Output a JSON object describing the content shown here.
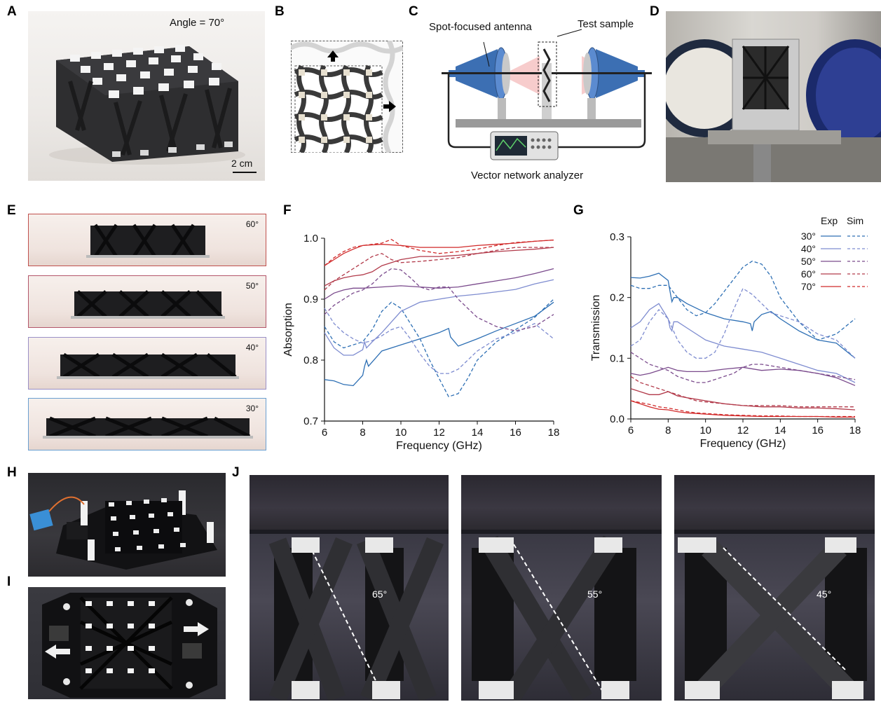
{
  "panel_labels": {
    "A": "A",
    "B": "B",
    "C": "C",
    "D": "D",
    "E": "E",
    "F": "F",
    "G": "G",
    "H": "H",
    "I": "I",
    "J": "J"
  },
  "panelA": {
    "angle_text": "Angle = 70°",
    "scale_text": "2 cm"
  },
  "panelC": {
    "antenna_label": "Spot-focused antenna",
    "sample_label": "Test sample",
    "analyzer_label": "Vector network analyzer"
  },
  "panelE": {
    "angles": [
      "60°",
      "50°",
      "40°",
      "30°"
    ],
    "border_colors": [
      "#c0504d",
      "#b3566a",
      "#9a8fc6",
      "#6a9fd1"
    ]
  },
  "panelJ": {
    "angles": [
      "65°",
      "55°",
      "45°"
    ]
  },
  "colors": {
    "30": "#2d6fb4",
    "40": "#7e8cd0",
    "50": "#7a4a8c",
    "60": "#b23a4a",
    "70": "#d12a2a"
  },
  "chart_data": [
    {
      "type": "line",
      "panel": "F",
      "xlabel": "Frequency (GHz)",
      "ylabel": "Absorption",
      "xlim": [
        6,
        18
      ],
      "ylim": [
        0.7,
        1.0
      ],
      "xticks": [
        "6",
        "8",
        "10",
        "12",
        "14",
        "16",
        "18"
      ],
      "yticks": [
        "0.7",
        "0.8",
        "0.9",
        "1.0"
      ],
      "series": [
        {
          "key": "30",
          "kind": "exp",
          "x": [
            6,
            6.5,
            7,
            7.5,
            8,
            8.1,
            8.2,
            8.3,
            9,
            10,
            11,
            12,
            12.5,
            12.6,
            13,
            14,
            15,
            16,
            17,
            18
          ],
          "y": [
            0.768,
            0.766,
            0.76,
            0.758,
            0.775,
            0.79,
            0.8,
            0.79,
            0.815,
            0.825,
            0.835,
            0.845,
            0.852,
            0.838,
            0.823,
            0.835,
            0.848,
            0.86,
            0.872,
            0.895
          ]
        },
        {
          "key": "30",
          "kind": "sim",
          "x": [
            6,
            6.5,
            7,
            7.5,
            8,
            8.5,
            9,
            9.5,
            10,
            10.5,
            11,
            11.5,
            12,
            12.5,
            13,
            13.5,
            14,
            15,
            16,
            17,
            18
          ],
          "y": [
            0.855,
            0.83,
            0.82,
            0.825,
            0.83,
            0.85,
            0.88,
            0.895,
            0.885,
            0.86,
            0.835,
            0.8,
            0.77,
            0.74,
            0.745,
            0.77,
            0.8,
            0.83,
            0.85,
            0.87,
            0.9
          ]
        },
        {
          "key": "40",
          "kind": "exp",
          "x": [
            6,
            6.5,
            7,
            7.5,
            8,
            8.1,
            8.2,
            8.5,
            9,
            10,
            11,
            12,
            13,
            14,
            15,
            16,
            17,
            18
          ],
          "y": [
            0.845,
            0.82,
            0.808,
            0.808,
            0.817,
            0.83,
            0.82,
            0.83,
            0.845,
            0.88,
            0.895,
            0.9,
            0.905,
            0.908,
            0.912,
            0.916,
            0.925,
            0.932
          ]
        },
        {
          "key": "40",
          "kind": "sim",
          "x": [
            6,
            6.5,
            7,
            7.5,
            8,
            8.5,
            9,
            9.5,
            10,
            10.5,
            11,
            11.5,
            12,
            12.5,
            13,
            13.5,
            14,
            15,
            16,
            17,
            18
          ],
          "y": [
            0.885,
            0.86,
            0.845,
            0.835,
            0.828,
            0.832,
            0.84,
            0.85,
            0.855,
            0.835,
            0.81,
            0.79,
            0.778,
            0.778,
            0.785,
            0.8,
            0.815,
            0.835,
            0.845,
            0.86,
            0.835
          ]
        },
        {
          "key": "50",
          "kind": "exp",
          "x": [
            6,
            6.5,
            7,
            7.5,
            8,
            9,
            10,
            11,
            12,
            13,
            14,
            15,
            16,
            17,
            18
          ],
          "y": [
            0.9,
            0.91,
            0.915,
            0.918,
            0.918,
            0.92,
            0.922,
            0.92,
            0.918,
            0.92,
            0.925,
            0.93,
            0.935,
            0.942,
            0.95
          ]
        },
        {
          "key": "50",
          "kind": "sim",
          "x": [
            6,
            6.5,
            7,
            7.5,
            8,
            8.5,
            9,
            9.5,
            10,
            10.5,
            11,
            11.5,
            12,
            12.5,
            13,
            14,
            15,
            16,
            17,
            18
          ],
          "y": [
            0.875,
            0.89,
            0.9,
            0.91,
            0.915,
            0.925,
            0.94,
            0.95,
            0.948,
            0.935,
            0.92,
            0.915,
            0.92,
            0.92,
            0.9,
            0.87,
            0.855,
            0.848,
            0.855,
            0.875
          ]
        },
        {
          "key": "60",
          "kind": "exp",
          "x": [
            6,
            6.5,
            7,
            7.5,
            8,
            8.5,
            9,
            10,
            11,
            12,
            13,
            14,
            15,
            16,
            17,
            18
          ],
          "y": [
            0.922,
            0.93,
            0.935,
            0.938,
            0.94,
            0.945,
            0.955,
            0.965,
            0.97,
            0.97,
            0.972,
            0.975,
            0.978,
            0.98,
            0.982,
            0.985
          ]
        },
        {
          "key": "60",
          "kind": "sim",
          "x": [
            6,
            6.5,
            7,
            7.5,
            8,
            8.5,
            9,
            9.5,
            10,
            11,
            12,
            13,
            14,
            15,
            16,
            17,
            18
          ],
          "y": [
            0.915,
            0.93,
            0.94,
            0.95,
            0.96,
            0.97,
            0.975,
            0.965,
            0.96,
            0.962,
            0.965,
            0.968,
            0.975,
            0.98,
            0.985,
            0.985,
            0.985
          ]
        },
        {
          "key": "70",
          "kind": "exp",
          "x": [
            6,
            6.5,
            7,
            7.5,
            8,
            9,
            10,
            11,
            12,
            13,
            14,
            15,
            16,
            17,
            18
          ],
          "y": [
            0.955,
            0.965,
            0.975,
            0.982,
            0.988,
            0.99,
            0.988,
            0.985,
            0.985,
            0.985,
            0.988,
            0.99,
            0.992,
            0.995,
            0.997
          ]
        },
        {
          "key": "70",
          "kind": "sim",
          "x": [
            6,
            6.5,
            7,
            7.5,
            8,
            8.5,
            9,
            9.5,
            10,
            11,
            12,
            13,
            14,
            15,
            16,
            17,
            18
          ],
          "y": [
            0.955,
            0.968,
            0.978,
            0.985,
            0.988,
            0.99,
            0.992,
            0.998,
            0.988,
            0.98,
            0.975,
            0.978,
            0.982,
            0.988,
            0.993,
            0.995,
            0.997
          ]
        }
      ]
    },
    {
      "type": "line",
      "panel": "G",
      "xlabel": "Frequency (GHz)",
      "ylabel": "Transmission",
      "xlim": [
        6,
        18
      ],
      "ylim": [
        0.0,
        0.3
      ],
      "xticks": [
        "6",
        "8",
        "10",
        "12",
        "14",
        "16",
        "18"
      ],
      "yticks": [
        "0.0",
        "0.1",
        "0.2",
        "0.3"
      ],
      "legend": {
        "headers": [
          "Exp",
          "Sim"
        ],
        "entries": [
          "30°",
          "40°",
          "50°",
          "60°",
          "70°"
        ]
      },
      "series": [
        {
          "key": "30",
          "kind": "exp",
          "x": [
            6,
            6.5,
            7,
            7.5,
            8,
            8.1,
            8.2,
            8.3,
            8.5,
            9,
            10,
            11,
            12,
            12.4,
            12.5,
            12.6,
            13,
            13.5,
            14,
            15,
            16,
            17,
            18
          ],
          "y": [
            0.233,
            0.232,
            0.235,
            0.24,
            0.228,
            0.21,
            0.193,
            0.2,
            0.2,
            0.19,
            0.175,
            0.165,
            0.16,
            0.157,
            0.145,
            0.16,
            0.172,
            0.177,
            0.165,
            0.145,
            0.13,
            0.125,
            0.1
          ]
        },
        {
          "key": "30",
          "kind": "sim",
          "x": [
            6,
            6.5,
            7,
            7.5,
            8,
            8.5,
            9,
            9.5,
            10,
            10.5,
            11,
            11.5,
            12,
            12.5,
            13,
            13.5,
            14,
            15,
            16,
            17,
            18
          ],
          "y": [
            0.22,
            0.215,
            0.215,
            0.22,
            0.22,
            0.2,
            0.18,
            0.17,
            0.175,
            0.19,
            0.21,
            0.23,
            0.25,
            0.26,
            0.255,
            0.235,
            0.2,
            0.16,
            0.13,
            0.14,
            0.165
          ]
        },
        {
          "key": "40",
          "kind": "exp",
          "x": [
            6,
            6.5,
            7,
            7.5,
            8,
            8.1,
            8.2,
            8.3,
            8.5,
            9,
            10,
            11,
            12,
            13,
            14,
            15,
            16,
            17,
            18
          ],
          "y": [
            0.15,
            0.16,
            0.18,
            0.19,
            0.165,
            0.15,
            0.145,
            0.16,
            0.16,
            0.15,
            0.13,
            0.12,
            0.115,
            0.11,
            0.1,
            0.09,
            0.08,
            0.075,
            0.06
          ]
        },
        {
          "key": "40",
          "kind": "sim",
          "x": [
            6,
            6.5,
            7,
            7.5,
            8,
            8.5,
            9,
            9.5,
            10,
            10.5,
            11,
            11.5,
            12,
            12.5,
            13,
            13.5,
            14,
            15,
            16,
            17,
            18
          ],
          "y": [
            0.12,
            0.13,
            0.16,
            0.18,
            0.165,
            0.13,
            0.11,
            0.1,
            0.1,
            0.11,
            0.14,
            0.18,
            0.215,
            0.205,
            0.19,
            0.175,
            0.17,
            0.16,
            0.14,
            0.13,
            0.1
          ]
        },
        {
          "key": "50",
          "kind": "exp",
          "x": [
            6,
            6.5,
            7,
            7.5,
            8,
            8.5,
            9,
            10,
            11,
            12,
            13,
            14,
            15,
            16,
            17,
            18
          ],
          "y": [
            0.075,
            0.072,
            0.075,
            0.08,
            0.085,
            0.08,
            0.078,
            0.078,
            0.082,
            0.085,
            0.08,
            0.082,
            0.08,
            0.075,
            0.068,
            0.055
          ]
        },
        {
          "key": "50",
          "kind": "sim",
          "x": [
            6,
            6.5,
            7,
            7.5,
            8,
            8.5,
            9,
            9.5,
            10,
            10.5,
            11,
            11.5,
            12,
            12.5,
            13,
            14,
            15,
            16,
            17,
            18
          ],
          "y": [
            0.11,
            0.1,
            0.09,
            0.085,
            0.08,
            0.07,
            0.065,
            0.06,
            0.06,
            0.065,
            0.07,
            0.075,
            0.085,
            0.09,
            0.09,
            0.085,
            0.08,
            0.075,
            0.07,
            0.065
          ]
        },
        {
          "key": "60",
          "kind": "exp",
          "x": [
            6,
            6.5,
            7,
            7.5,
            8,
            8.5,
            9,
            10,
            11,
            12,
            13,
            14,
            15,
            16,
            17,
            18
          ],
          "y": [
            0.05,
            0.045,
            0.04,
            0.04,
            0.045,
            0.038,
            0.035,
            0.03,
            0.025,
            0.022,
            0.02,
            0.02,
            0.018,
            0.018,
            0.017,
            0.015
          ]
        },
        {
          "key": "60",
          "kind": "sim",
          "x": [
            6,
            6.5,
            7,
            7.5,
            8,
            8.5,
            9,
            9.5,
            10,
            11,
            12,
            13,
            14,
            15,
            16,
            17,
            18
          ],
          "y": [
            0.07,
            0.06,
            0.055,
            0.05,
            0.045,
            0.04,
            0.035,
            0.03,
            0.028,
            0.025,
            0.022,
            0.022,
            0.022,
            0.02,
            0.02,
            0.02,
            0.02
          ]
        },
        {
          "key": "70",
          "kind": "exp",
          "x": [
            6,
            6.5,
            7,
            7.5,
            8,
            8.5,
            9,
            10,
            11,
            12,
            13,
            14,
            15,
            16,
            17,
            18
          ],
          "y": [
            0.03,
            0.025,
            0.02,
            0.016,
            0.015,
            0.012,
            0.01,
            0.008,
            0.006,
            0.005,
            0.004,
            0.004,
            0.004,
            0.004,
            0.003,
            0.003
          ]
        },
        {
          "key": "70",
          "kind": "sim",
          "x": [
            6,
            6.5,
            7,
            7.5,
            8,
            8.5,
            9,
            9.5,
            10,
            11,
            12,
            13,
            14,
            15,
            16,
            17,
            18
          ],
          "y": [
            0.03,
            0.027,
            0.024,
            0.02,
            0.018,
            0.015,
            0.012,
            0.01,
            0.009,
            0.007,
            0.006,
            0.005,
            0.005,
            0.004,
            0.004,
            0.004,
            0.004
          ]
        }
      ]
    }
  ]
}
